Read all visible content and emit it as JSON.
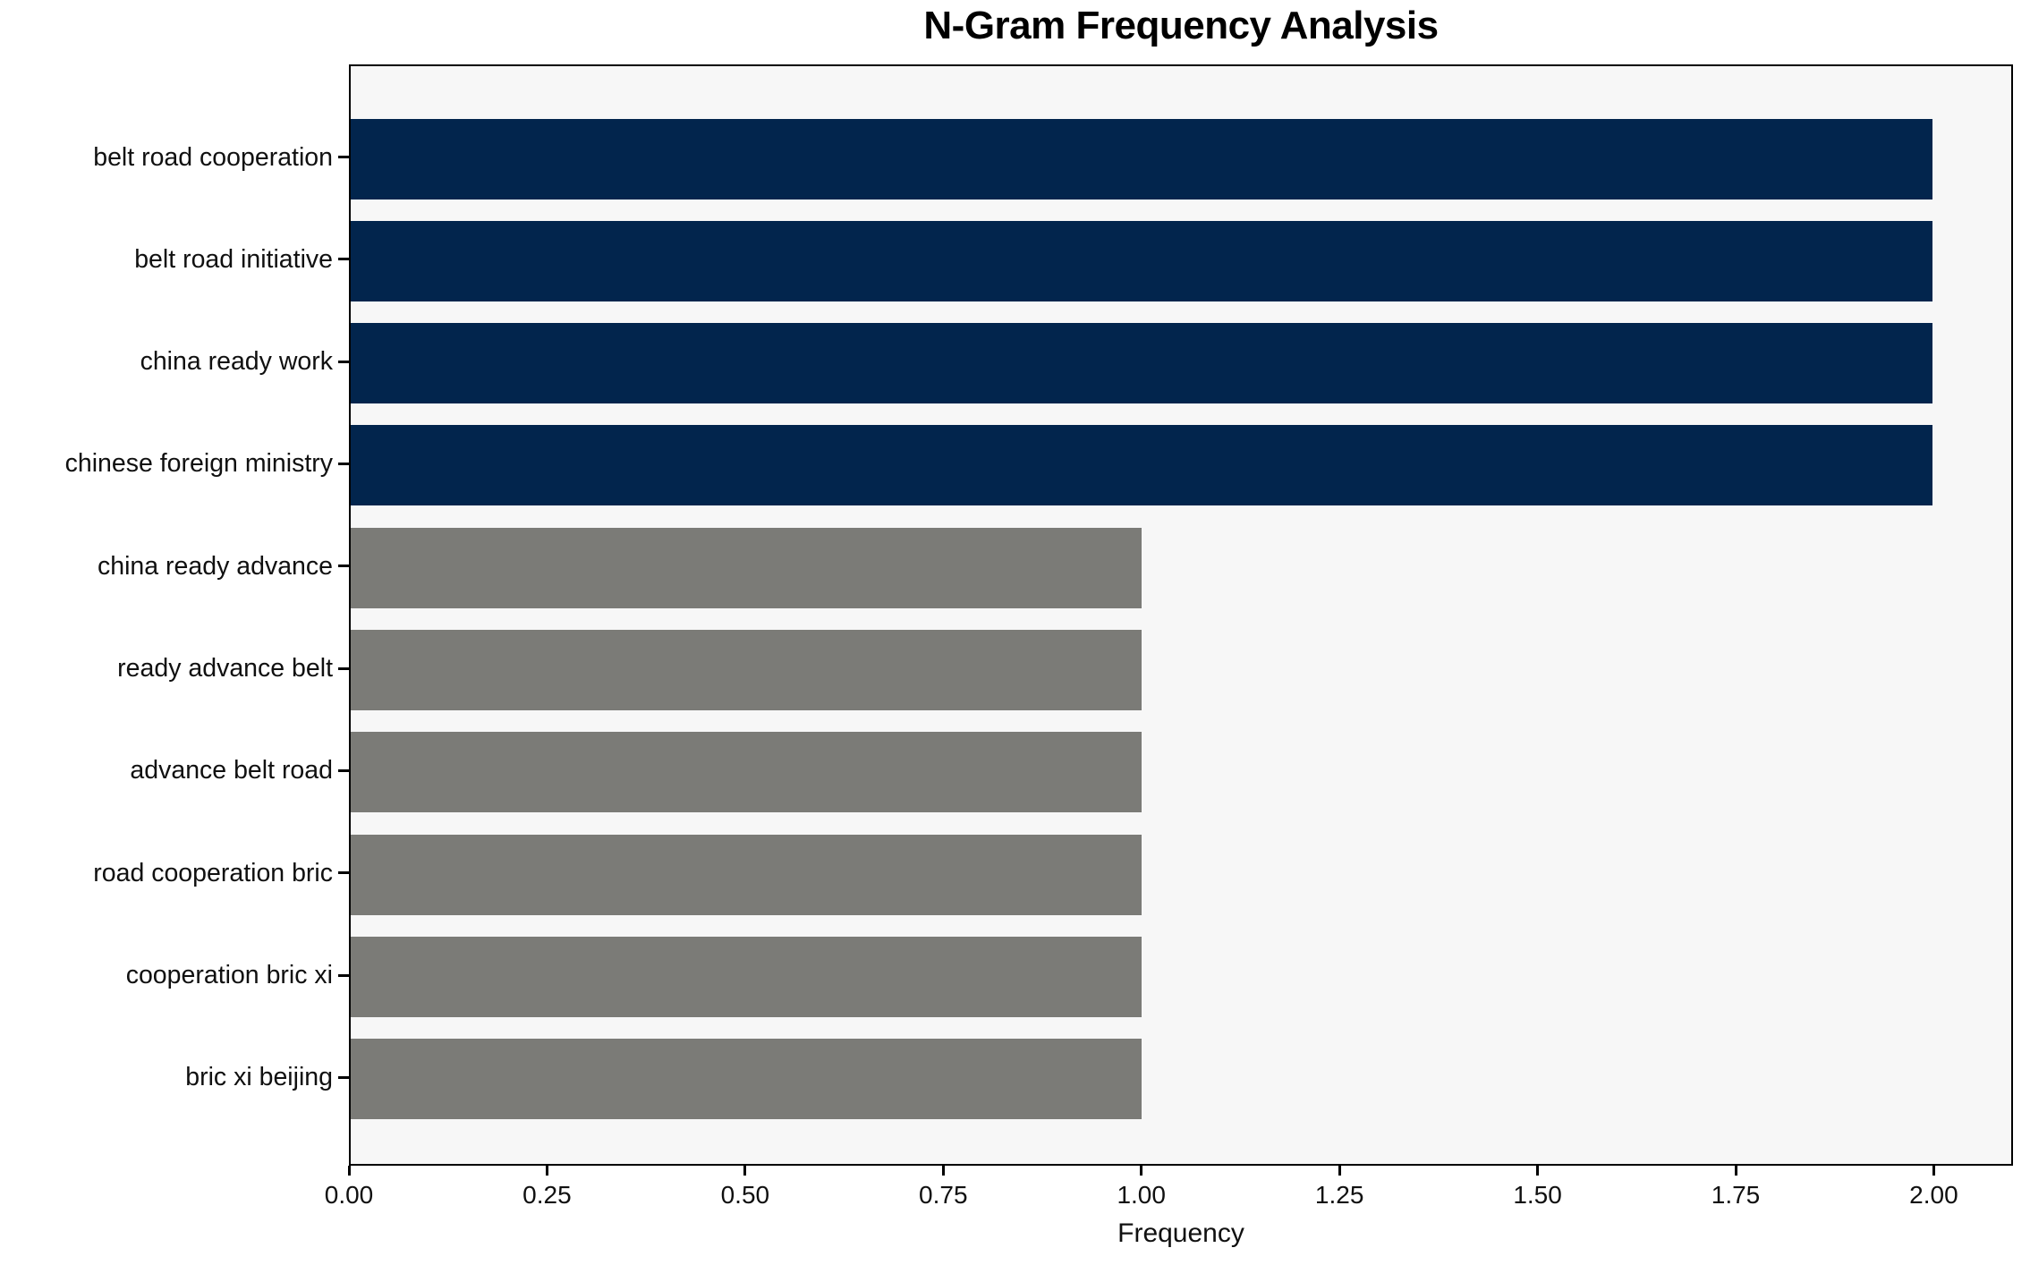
{
  "chart_data": {
    "type": "bar",
    "orientation": "horizontal",
    "title": "N-Gram Frequency Analysis",
    "xlabel": "Frequency",
    "ylabel": "",
    "categories": [
      "belt road cooperation",
      "belt road initiative",
      "china ready work",
      "chinese foreign ministry",
      "china ready advance",
      "ready advance belt",
      "advance belt road",
      "road cooperation bric",
      "cooperation bric xi",
      "bric xi beijing"
    ],
    "values": [
      2,
      2,
      2,
      2,
      1,
      1,
      1,
      1,
      1,
      1
    ],
    "bar_colors": [
      "#02254d",
      "#02254d",
      "#02254d",
      "#02254d",
      "#7b7b77",
      "#7b7b77",
      "#7b7b77",
      "#7b7b77",
      "#7b7b77",
      "#7b7b77"
    ],
    "x_tick_labels": [
      "0.00",
      "0.25",
      "0.50",
      "0.75",
      "1.00",
      "1.25",
      "1.50",
      "1.75",
      "2.00"
    ],
    "x_tick_values": [
      0,
      0.25,
      0.5,
      0.75,
      1.0,
      1.25,
      1.5,
      1.75,
      2.0
    ],
    "xlim": [
      0,
      2.1
    ],
    "grid": false,
    "legend": null,
    "plot_background": "#f7f7f7",
    "figure_background": "#ffffff",
    "colors": {
      "high_frequency": "#02254d",
      "low_frequency": "#7b7b77"
    }
  }
}
